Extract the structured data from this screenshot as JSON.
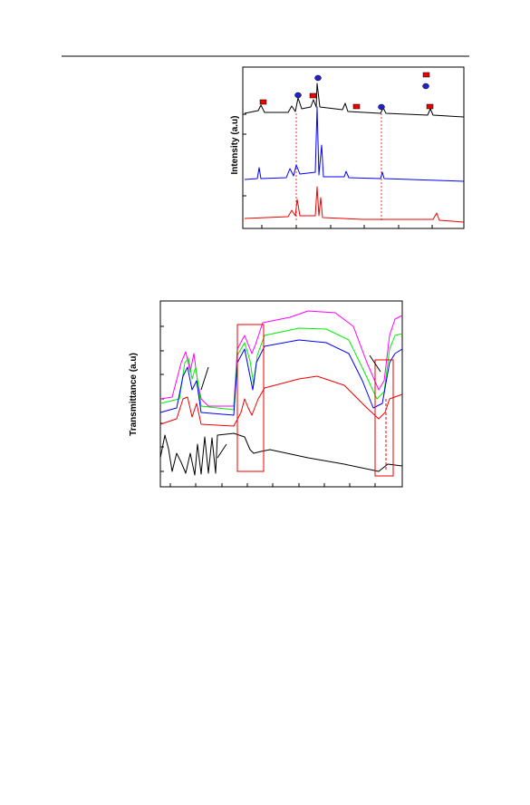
{
  "figures": [
    {
      "y_label": "Intensity (a.u)"
    },
    {
      "y_label": "Transmittance (a.u)"
    }
  ]
}
